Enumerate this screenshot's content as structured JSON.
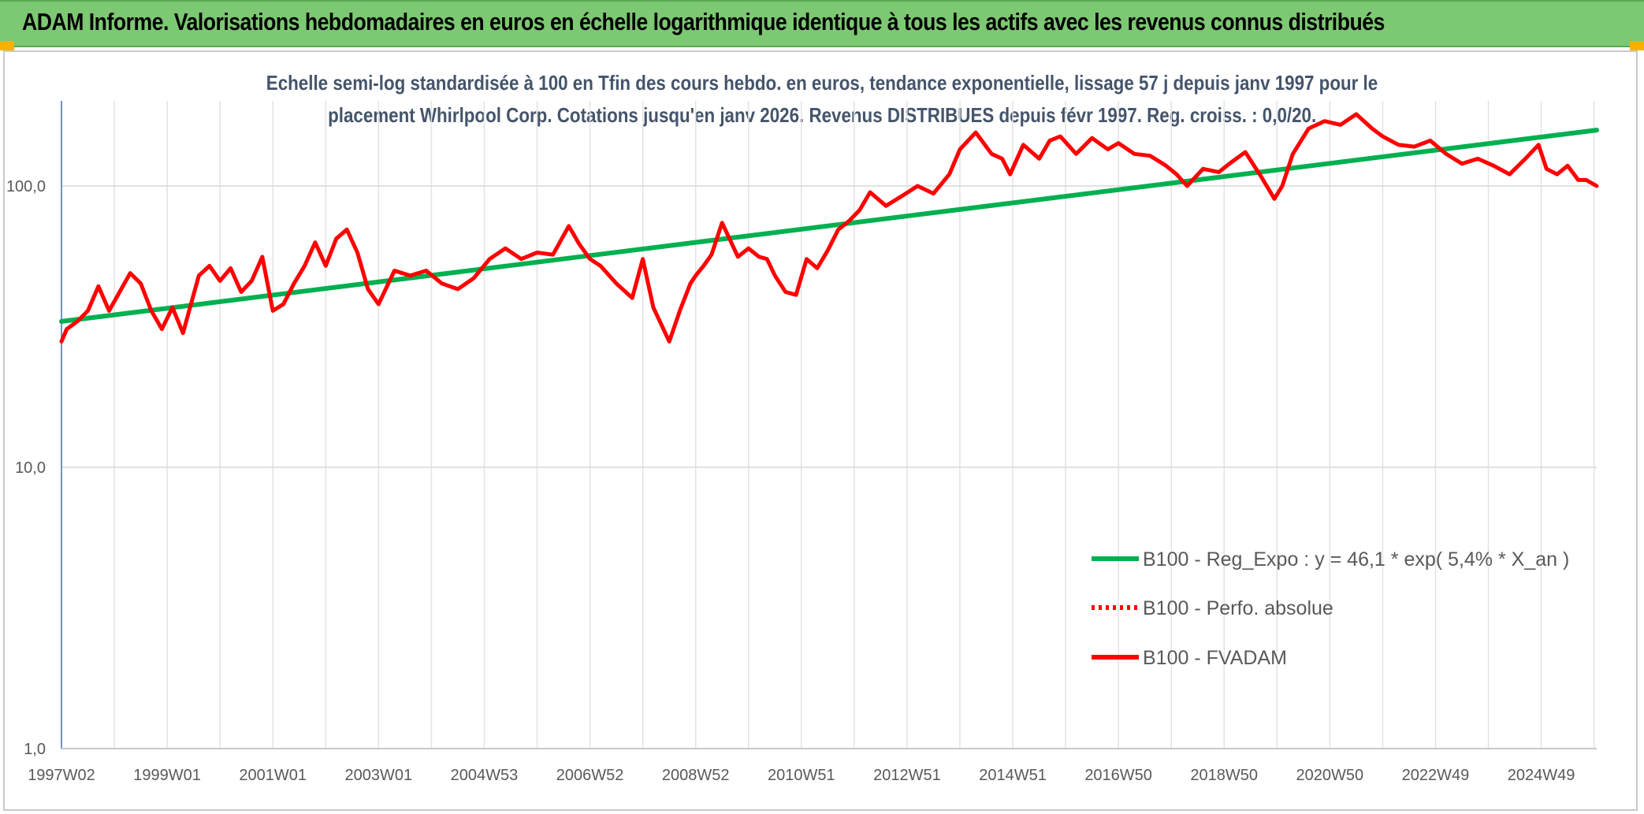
{
  "header": {
    "title": "ADAM Informe. Valorisations hebdomadaires en euros en échelle logarithmique identique à tous les actifs avec les revenus connus distribués"
  },
  "chart_data": {
    "type": "line",
    "title_line1": "Echelle semi-log standardisée à 100 en Tfin des cours hebdo. en euros, tendance exponentielle, lissage 57 j depuis janv 1997 pour le",
    "title_line2": "placement Whirlpool Corp. Cotations jusqu'en janv 2026. Revenus DISTRIBUES depuis févr 1997. Reg. croiss. : 0,0/20.",
    "xlabel": "",
    "ylabel": "",
    "y_scale": "log",
    "ylim": [
      1,
      180
    ],
    "y_ticks": [
      {
        "value": 1,
        "label": "1,0"
      },
      {
        "value": 10,
        "label": "10,0"
      },
      {
        "value": 100,
        "label": "100,0"
      }
    ],
    "x_range": [
      1997.0,
      2026.05
    ],
    "x_ticks": [
      {
        "x": 1997.0,
        "label": "1997W02"
      },
      {
        "x": 1999.0,
        "label": "1999W01"
      },
      {
        "x": 2001.0,
        "label": "2001W01"
      },
      {
        "x": 2003.0,
        "label": "2003W01"
      },
      {
        "x": 2005.0,
        "label": "2004W53"
      },
      {
        "x": 2007.0,
        "label": "2006W52"
      },
      {
        "x": 2009.0,
        "label": "2008W52"
      },
      {
        "x": 2011.0,
        "label": "2010W51"
      },
      {
        "x": 2013.0,
        "label": "2012W51"
      },
      {
        "x": 2015.0,
        "label": "2014W51"
      },
      {
        "x": 2017.0,
        "label": "2016W50"
      },
      {
        "x": 2019.0,
        "label": "2018W50"
      },
      {
        "x": 2021.0,
        "label": "2020W50"
      },
      {
        "x": 2023.0,
        "label": "2022W49"
      },
      {
        "x": 2025.0,
        "label": "2024W49"
      }
    ],
    "grid": true,
    "legend_position": "bottom-right",
    "series": [
      {
        "name": "B100 - Reg_Expo : y = 46,1 * exp( 5,4% *  X_an )",
        "color": "#00b050",
        "style": "solid",
        "x": [
          1997.0,
          2026.05
        ],
        "y": [
          33.0,
          158.0
        ]
      },
      {
        "name": "B100 - Perfo. absolue",
        "color": "#ff0000",
        "style": "dotted",
        "x": [],
        "y": []
      },
      {
        "name": "B100 - FVADAM",
        "color": "#ff0000",
        "style": "solid",
        "x": [
          1997.0,
          1997.1,
          1997.3,
          1997.5,
          1997.7,
          1997.9,
          1998.1,
          1998.3,
          1998.5,
          1998.7,
          1998.9,
          1999.1,
          1999.3,
          1999.45,
          1999.6,
          1999.8,
          2000.0,
          2000.2,
          2000.4,
          2000.6,
          2000.8,
          2001.0,
          2001.2,
          2001.4,
          2001.6,
          2001.8,
          2002.0,
          2002.2,
          2002.4,
          2002.6,
          2002.8,
          2003.0,
          2003.3,
          2003.6,
          2003.9,
          2004.2,
          2004.5,
          2004.8,
          2005.1,
          2005.4,
          2005.7,
          2006.0,
          2006.3,
          2006.6,
          2006.8,
          2007.0,
          2007.2,
          2007.5,
          2007.8,
          2008.0,
          2008.2,
          2008.5,
          2008.7,
          2008.9,
          2009.0,
          2009.15,
          2009.3,
          2009.5,
          2009.8,
          2010.0,
          2010.2,
          2010.35,
          2010.5,
          2010.7,
          2010.9,
          2011.1,
          2011.3,
          2011.5,
          2011.7,
          2011.9,
          2012.1,
          2012.3,
          2012.6,
          2012.9,
          2013.2,
          2013.5,
          2013.8,
          2014.0,
          2014.3,
          2014.6,
          2014.8,
          2014.95,
          2015.2,
          2015.5,
          2015.7,
          2015.9,
          2016.2,
          2016.5,
          2016.8,
          2017.0,
          2017.3,
          2017.6,
          2017.9,
          2018.1,
          2018.3,
          2018.6,
          2018.9,
          2019.1,
          2019.4,
          2019.7,
          2019.95,
          2020.1,
          2020.3,
          2020.6,
          2020.9,
          2021.2,
          2021.5,
          2021.8,
          2022.0,
          2022.3,
          2022.6,
          2022.9,
          2023.2,
          2023.5,
          2023.8,
          2024.1,
          2024.4,
          2024.7,
          2024.95,
          2025.1,
          2025.3,
          2025.5,
          2025.7,
          2025.85,
          2026.05
        ],
        "y": [
          28,
          31,
          33,
          36,
          44,
          36,
          42,
          49,
          45,
          36,
          31,
          37,
          30,
          38,
          48,
          52,
          46,
          51,
          42,
          46,
          56,
          36,
          38,
          45,
          52,
          63,
          52,
          65,
          70,
          58,
          43,
          38,
          50,
          48,
          50,
          45,
          43,
          47,
          55,
          60,
          55,
          58,
          57,
          72,
          62,
          55,
          52,
          45,
          40,
          55,
          37,
          28,
          36,
          45,
          48,
          52,
          57,
          74,
          56,
          60,
          56,
          55,
          48,
          42,
          41,
          55,
          51,
          59,
          70,
          75,
          82,
          95,
          85,
          92,
          100,
          94,
          110,
          135,
          155,
          130,
          125,
          110,
          140,
          125,
          145,
          150,
          130,
          148,
          135,
          142,
          130,
          128,
          118,
          110,
          100,
          115,
          112,
          120,
          132,
          108,
          90,
          100,
          130,
          160,
          170,
          165,
          180,
          160,
          150,
          140,
          138,
          145,
          130,
          120,
          125,
          118,
          110,
          125,
          140,
          115,
          110,
          118,
          105,
          105,
          100
        ]
      }
    ]
  }
}
